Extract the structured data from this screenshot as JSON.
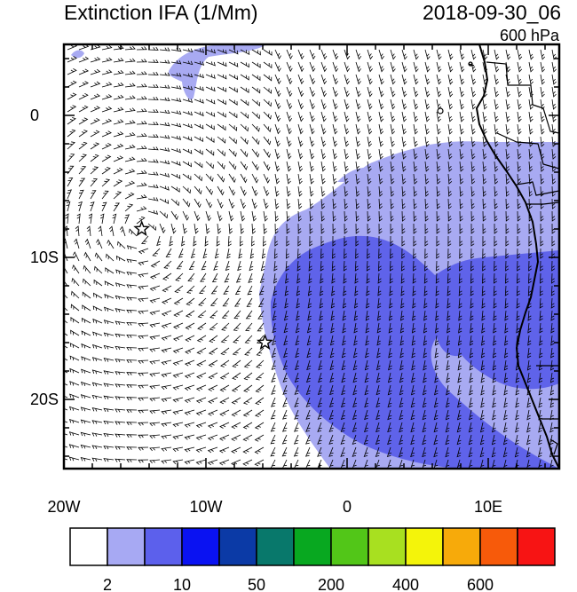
{
  "header": {
    "title": "Extinction IFA (1/Mm)",
    "datetime": "2018-09-30_06",
    "level": "600 hPa"
  },
  "map": {
    "lat_ticks": [
      "0",
      "10S",
      "20S"
    ],
    "lon_ticks": [
      "20W",
      "10W",
      "0",
      "10E"
    ],
    "markers": [
      {
        "name": "site-1",
        "lon": -14.5,
        "lat": -8.0
      },
      {
        "name": "site-2",
        "lon": -5.8,
        "lat": -16.0
      }
    ],
    "shading_colors": {
      "light": "#a8aaf2",
      "medium": "#5f63ea"
    },
    "features": [
      "wind-barbs",
      "coastline",
      "country-borders"
    ]
  },
  "colorbar": {
    "colors": [
      "#ffffff",
      "#a7a9f3",
      "#5c60ec",
      "#0a12f2",
      "#0b3aa6",
      "#08786b",
      "#08a820",
      "#52c618",
      "#a8e020",
      "#f4f40a",
      "#f7aa0a",
      "#f75a0a",
      "#f71414"
    ],
    "labels": [
      "2",
      "10",
      "50",
      "200",
      "400",
      "600"
    ]
  }
}
